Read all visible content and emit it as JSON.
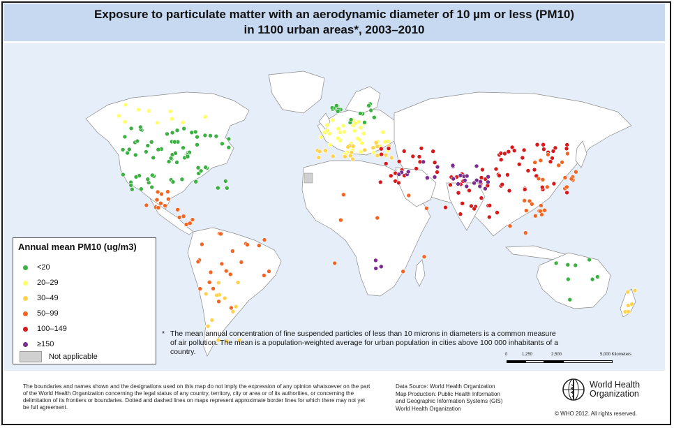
{
  "title": {
    "line1": "Exposure to particulate matter with an aerodynamic diameter of 10 µm or less (PM10)",
    "line2": "in 1100 urban areas*, 2003–2010"
  },
  "legend": {
    "title": "Annual mean PM10 (ug/m3)",
    "items": [
      {
        "label": "<20",
        "color": "#3cb043"
      },
      {
        "label": "20–29",
        "color": "#ffff66"
      },
      {
        "label": "30–49",
        "color": "#ffd24d"
      },
      {
        "label": "50–99",
        "color": "#f26522"
      },
      {
        "label": "100–149",
        "color": "#d7191c"
      },
      {
        "label": "≥150",
        "color": "#7b2c8f"
      }
    ],
    "not_applicable": {
      "label": "Not applicable",
      "color": "#d0d0d0"
    }
  },
  "footnote": {
    "star": "*",
    "text": "The mean annual concentration of fine suspended particles of less than 10 microns in diameters is a common measure of air pollution. The mean is a population-weighted average for urban population in cities above 100 000 inhabitants of a country."
  },
  "scale_bar": {
    "ticks": [
      "0",
      "1,250",
      "2,500",
      "5,000 Kilometers"
    ]
  },
  "disclaimer": "The boundaries and names shown and the designations used on this map do not imply the expression of any opinion whatsoever on the part of the World Health Organization concerning the legal status of any country, territory, city or area or of its authorities, or concerning the delimitation of its frontiers or boundaries.  Dotted and dashed lines on maps represent approximate border lines for which there may not yet be full agreement.",
  "source": {
    "line1": "Data Source: World Health Organization",
    "line2": "Map Production: Public Health Information",
    "line3": "and Geographic Information Systems (GIS)",
    "line4": "World Health Organization"
  },
  "logo": {
    "name": "World Health\nOrganization"
  },
  "copyright": "© WHO 2012. All rights reserved.",
  "colors": {
    "title_bg": "#c6d9f1",
    "ocean": "#e6eff9",
    "land": "#ffffff",
    "border": "#8a8a8a"
  },
  "dot_clusters": [
    {
      "region": "north-america",
      "level": 0,
      "count": 70
    },
    {
      "region": "north-america-north",
      "level": 1,
      "count": 10
    },
    {
      "region": "mexico",
      "level": 3,
      "count": 10
    },
    {
      "region": "central-america",
      "level": 3,
      "count": 6
    },
    {
      "region": "south-america",
      "level": 3,
      "count": 22
    },
    {
      "region": "south-america-south",
      "level": 2,
      "count": 14
    },
    {
      "region": "europe",
      "level": 1,
      "count": 40
    },
    {
      "region": "europe-north",
      "level": 0,
      "count": 18
    },
    {
      "region": "europe-south",
      "level": 2,
      "count": 22
    },
    {
      "region": "middle-east",
      "level": 4,
      "count": 22
    },
    {
      "region": "middle-east-purple",
      "level": 5,
      "count": 8
    },
    {
      "region": "south-asia",
      "level": 4,
      "count": 30
    },
    {
      "region": "south-asia-purple",
      "level": 5,
      "count": 18
    },
    {
      "region": "china",
      "level": 4,
      "count": 34
    },
    {
      "region": "east-asia",
      "level": 3,
      "count": 16
    },
    {
      "region": "southeast-asia",
      "level": 3,
      "count": 12
    },
    {
      "region": "africa",
      "level": 3,
      "count": 8
    },
    {
      "region": "southern-africa",
      "level": 5,
      "count": 3
    },
    {
      "region": "australia",
      "level": 0,
      "count": 8
    },
    {
      "region": "new-zealand",
      "level": 2,
      "count": 6
    }
  ]
}
